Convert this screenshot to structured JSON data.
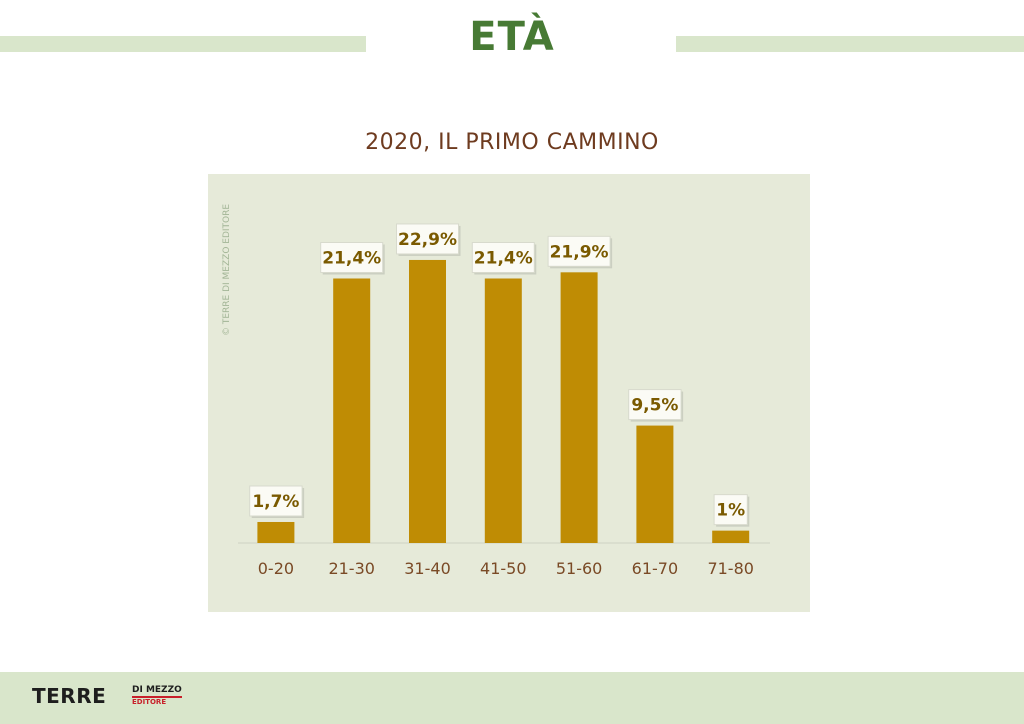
{
  "header": {
    "title": "ETÀ"
  },
  "chart_data": {
    "type": "bar",
    "title": "2020, IL PRIMO CAMMINO",
    "categories": [
      "0-20",
      "21-30",
      "31-40",
      "41-50",
      "51-60",
      "61-70",
      "71-80"
    ],
    "values": [
      1.7,
      21.4,
      22.9,
      21.4,
      21.9,
      9.5,
      1
    ],
    "data_labels": [
      "1,7%",
      "21,4%",
      "22,9%",
      "21,4%",
      "21,9%",
      "9,5%",
      "1%"
    ],
    "xlabel": "",
    "ylabel": "",
    "ylim": [
      0,
      25
    ],
    "grid": false,
    "legend": "none",
    "colors": {
      "bar": "#bf8c04",
      "label_text": "#7a5a00",
      "tick_text": "#7a4a26",
      "panel": "#e6ead9"
    }
  },
  "watermark": "© TERRE DI MEZZO EDITORE",
  "footer": {
    "logo_main": "TERRE",
    "logo_sub": "DI MEZZO",
    "logo_editore": "EDITORE"
  }
}
